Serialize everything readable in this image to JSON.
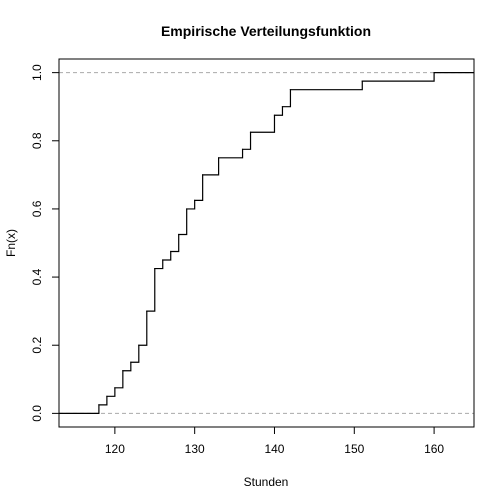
{
  "chart_data": {
    "type": "line",
    "title": "Empirische Verteilungsfunktion",
    "xlabel": "Stunden",
    "ylabel": "Fn(x)",
    "xlim": [
      113,
      165
    ],
    "ylim": [
      -0.04,
      1.04
    ],
    "x_ticks": [
      120,
      130,
      140,
      150,
      160
    ],
    "y_ticks": [
      0.0,
      0.2,
      0.4,
      0.6,
      0.8,
      1.0
    ],
    "x_tick_labels": [
      "120",
      "130",
      "140",
      "150",
      "160"
    ],
    "y_tick_labels": [
      "0.0",
      "0.2",
      "0.4",
      "0.6",
      "0.8",
      "1.0"
    ],
    "reference_lines": [
      0,
      1
    ],
    "series": [
      {
        "steps": [
          {
            "x": 118,
            "y": 0.025
          },
          {
            "x": 119,
            "y": 0.05
          },
          {
            "x": 120,
            "y": 0.075
          },
          {
            "x": 121,
            "y": 0.125
          },
          {
            "x": 122,
            "y": 0.15
          },
          {
            "x": 123,
            "y": 0.2
          },
          {
            "x": 124,
            "y": 0.3
          },
          {
            "x": 125,
            "y": 0.425
          },
          {
            "x": 126,
            "y": 0.45
          },
          {
            "x": 127,
            "y": 0.475
          },
          {
            "x": 128,
            "y": 0.525
          },
          {
            "x": 129,
            "y": 0.6
          },
          {
            "x": 130,
            "y": 0.625
          },
          {
            "x": 131,
            "y": 0.7
          },
          {
            "x": 133,
            "y": 0.75
          },
          {
            "x": 136,
            "y": 0.775
          },
          {
            "x": 137,
            "y": 0.825
          },
          {
            "x": 140,
            "y": 0.875
          },
          {
            "x": 141,
            "y": 0.9
          },
          {
            "x": 142,
            "y": 0.95
          },
          {
            "x": 151,
            "y": 0.975
          },
          {
            "x": 160,
            "y": 1.0
          }
        ]
      }
    ]
  }
}
